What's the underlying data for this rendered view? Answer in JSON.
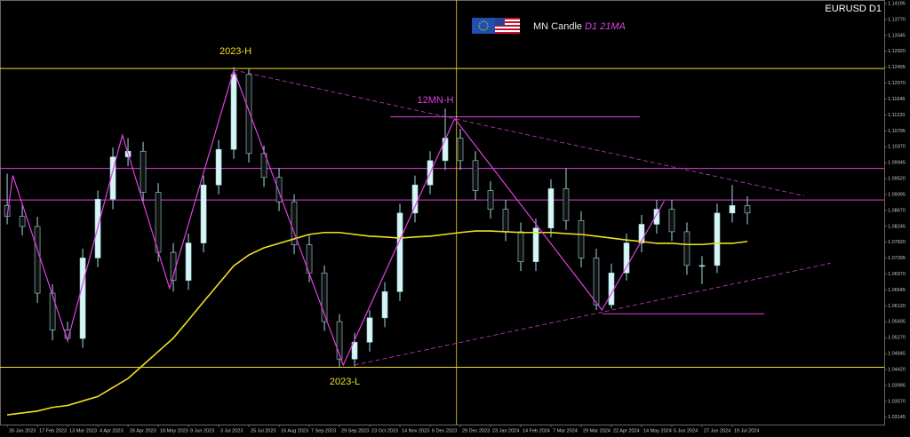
{
  "chart_data": {
    "type": "candlestick",
    "title": "EURUSD D1",
    "legend_text": "MN Candle",
    "legend_ma": "D1 21MA",
    "xlim": [
      -3.8,
      464.5
    ],
    "ylim": [
      1.0295,
      1.1429
    ],
    "yticks": [
      {
        "value": 1.14195,
        "label": "1.14195"
      },
      {
        "value": 1.1377,
        "label": "1.13770"
      },
      {
        "value": 1.13345,
        "label": "1.13345"
      },
      {
        "value": 1.1292,
        "label": "1.12920"
      },
      {
        "value": 1.12495,
        "label": "1.12495"
      },
      {
        "value": 1.1207,
        "label": "1.12070"
      },
      {
        "value": 1.11645,
        "label": "1.11645"
      },
      {
        "value": 1.1122,
        "label": "1.11220"
      },
      {
        "value": 1.10795,
        "label": "1.10795"
      },
      {
        "value": 1.1037,
        "label": "1.10370"
      },
      {
        "value": 1.09945,
        "label": "1.09945"
      },
      {
        "value": 1.0952,
        "label": "1.09520"
      },
      {
        "value": 1.09095,
        "label": "1.09095"
      },
      {
        "value": 1.0867,
        "label": "1.08670"
      },
      {
        "value": 1.08245,
        "label": "1.08245"
      },
      {
        "value": 1.0782,
        "label": "1.07820"
      },
      {
        "value": 1.07395,
        "label": "1.07395"
      },
      {
        "value": 1.0697,
        "label": "1.06970"
      },
      {
        "value": 1.06545,
        "label": "1.06545"
      },
      {
        "value": 1.0612,
        "label": "1.06120"
      },
      {
        "value": 1.05695,
        "label": "1.05695"
      },
      {
        "value": 1.0527,
        "label": "1.05270"
      },
      {
        "value": 1.04845,
        "label": "1.04845"
      },
      {
        "value": 1.0442,
        "label": "1.04420"
      },
      {
        "value": 1.03995,
        "label": "1.03995"
      },
      {
        "value": 1.0357,
        "label": "1.03570"
      },
      {
        "value": 1.03145,
        "label": "1.03145"
      }
    ],
    "xticks": [
      {
        "value": 0,
        "label": "26 Jan 2023"
      },
      {
        "value": 16,
        "label": "17 Feb 2023"
      },
      {
        "value": 32,
        "label": "13 Mar 2023"
      },
      {
        "value": 48,
        "label": "4 Apr 2023"
      },
      {
        "value": 64,
        "label": "26 Apr 2023"
      },
      {
        "value": 80,
        "label": "18 May 2023"
      },
      {
        "value": 96,
        "label": "9 Jun 2023"
      },
      {
        "value": 112,
        "label": "3 Jul 2023"
      },
      {
        "value": 128,
        "label": "25 Jul 2023"
      },
      {
        "value": 144,
        "label": "16 Aug 2023"
      },
      {
        "value": 160,
        "label": "7 Sep 2023"
      },
      {
        "value": 176,
        "label": "29 Sep 2023"
      },
      {
        "value": 192,
        "label": "23 Oct 2023"
      },
      {
        "value": 208,
        "label": "14 Nov 2023"
      },
      {
        "value": 224,
        "label": "6 Dec 2023"
      },
      {
        "value": 240,
        "label": "29 Dec 2023"
      },
      {
        "value": 256,
        "label": "23 Jan 2024"
      },
      {
        "value": 272,
        "label": "14 Feb 2024"
      },
      {
        "value": 288,
        "label": "7 Mar 2024"
      },
      {
        "value": 304,
        "label": "29 Mar 2024"
      },
      {
        "value": 320,
        "label": "22 Apr 2024"
      },
      {
        "value": 336,
        "label": "14 May 2024"
      },
      {
        "value": 352,
        "label": "5 Jun 2024"
      },
      {
        "value": 368,
        "label": "27 Jun 2024"
      },
      {
        "value": 384,
        "label": "19 Jul 2024"
      }
    ],
    "x": [
      0,
      8,
      16,
      24,
      32,
      40,
      48,
      56,
      64,
      72,
      80,
      88,
      96,
      104,
      112,
      120,
      128,
      136,
      144,
      152,
      160,
      168,
      176,
      184,
      192,
      200,
      208,
      216,
      224,
      232,
      240,
      248,
      256,
      264,
      272,
      280,
      288,
      296,
      304,
      312,
      320,
      328,
      336,
      344,
      352,
      360,
      368,
      376,
      384,
      392
    ],
    "open": [
      1.088,
      1.0851,
      1.0824,
      1.0646,
      1.0548,
      1.0525,
      1.074,
      1.0897,
      1.101,
      1.1025,
      1.0915,
      1.0755,
      1.068,
      1.078,
      1.0935,
      1.103,
      1.123,
      1.1019,
      1.0955,
      1.089,
      1.0775,
      1.07,
      1.057,
      1.047,
      1.0515,
      1.058,
      1.065,
      1.086,
      1.0935,
      1.1,
      1.106,
      1.1,
      1.092,
      1.087,
      1.081,
      1.073,
      1.082,
      1.0925,
      1.084,
      1.074,
      1.0615,
      1.07,
      1.078,
      1.083,
      1.087,
      1.081,
      1.072,
      1.072,
      1.086,
      1.088
    ],
    "high": [
      1.0965,
      1.088,
      1.085,
      1.067,
      1.057,
      1.0765,
      1.092,
      1.1035,
      1.106,
      1.105,
      1.094,
      1.078,
      1.0805,
      1.096,
      1.1055,
      1.125,
      1.1245,
      1.104,
      1.098,
      1.091,
      1.08,
      1.072,
      1.059,
      1.054,
      1.06,
      1.0675,
      1.0885,
      1.096,
      1.1025,
      1.1139,
      1.1085,
      1.1025,
      1.0945,
      1.0895,
      1.0835,
      1.0845,
      1.095,
      1.098,
      1.0865,
      1.0765,
      1.0725,
      1.0805,
      1.0855,
      1.0895,
      1.0895,
      1.0835,
      1.0745,
      1.0885,
      1.0935,
      1.0905
    ],
    "low": [
      1.083,
      1.08,
      1.062,
      1.052,
      1.0515,
      1.05,
      1.0715,
      1.087,
      1.0985,
      1.089,
      1.073,
      1.065,
      1.0655,
      1.0755,
      1.091,
      1.1005,
      1.0995,
      1.093,
      1.0865,
      1.075,
      1.0675,
      1.0545,
      1.0448,
      1.045,
      1.049,
      1.0555,
      1.0625,
      1.0835,
      1.091,
      1.0975,
      1.0975,
      1.0895,
      1.0845,
      1.0785,
      1.0705,
      1.0705,
      1.0795,
      1.0815,
      1.0715,
      1.0601,
      1.0605,
      1.068,
      1.0755,
      1.0805,
      1.0785,
      1.0695,
      1.067,
      1.07,
      1.0835,
      1.083
    ],
    "close": [
      1.0851,
      1.0824,
      1.0646,
      1.0548,
      1.0525,
      1.074,
      1.0897,
      1.101,
      1.1025,
      1.0915,
      1.0755,
      1.068,
      1.078,
      1.0935,
      1.103,
      1.123,
      1.1019,
      1.0955,
      1.089,
      1.0775,
      1.07,
      1.057,
      1.047,
      1.0515,
      1.058,
      1.065,
      1.086,
      1.0935,
      1.1,
      1.106,
      1.1,
      1.092,
      1.087,
      1.081,
      1.073,
      1.082,
      1.0925,
      1.084,
      1.074,
      1.0615,
      1.07,
      1.078,
      1.083,
      1.087,
      1.081,
      1.072,
      1.072,
      1.086,
      1.088,
      1.086
    ],
    "bull_color": "#d8f4f6",
    "bear_color": "#111111",
    "wick_color": "#9fdbe2",
    "lines": [
      {
        "color": "#f0e020",
        "width": 1.6,
        "dash": false,
        "x": [
          0,
          8,
          16,
          24,
          32,
          40,
          48,
          56,
          64,
          72,
          80,
          88,
          96,
          104,
          112,
          120,
          128,
          136,
          144,
          152,
          160,
          168,
          176,
          184,
          192,
          200,
          208,
          216,
          224,
          232,
          240,
          248,
          256,
          264,
          272,
          280,
          288,
          296,
          304,
          312,
          320,
          328,
          336,
          344,
          352,
          360,
          368,
          376,
          384,
          392
        ],
        "values": [
          1.0321,
          1.0326,
          1.0331,
          1.0341,
          1.0346,
          1.0358,
          1.037,
          1.0394,
          1.0418,
          1.0454,
          1.049,
          1.0526,
          1.0574,
          1.0623,
          1.0671,
          1.0719,
          1.0748,
          1.0767,
          1.0779,
          1.0791,
          1.0803,
          1.0808,
          1.0808,
          1.0803,
          1.0798,
          1.0796,
          1.0793,
          1.0796,
          1.0798,
          1.0803,
          1.0808,
          1.0812,
          1.0812,
          1.081,
          1.0808,
          1.0808,
          1.0808,
          1.0805,
          1.0803,
          1.0798,
          1.0793,
          1.0788,
          1.0784,
          1.0779,
          1.0779,
          1.0776,
          1.0776,
          1.0779,
          1.0779,
          1.0784
        ]
      },
      {
        "color": "#e040e0",
        "width": 1.2,
        "dash": false,
        "x": [
          0,
          3,
          32,
          61,
          86,
          120,
          178,
          237,
          315,
          348
        ],
        "values": [
          1.0851,
          1.096,
          1.0519,
          1.1068,
          1.0659,
          1.1242,
          1.0454,
          1.1112,
          1.0601,
          1.0892
        ]
      },
      {
        "color": "#c040c0",
        "width": 0.8,
        "dash": true,
        "x": [
          120,
          422
        ],
        "values": [
          1.1242,
          1.0906
        ]
      },
      {
        "color": "#c040c0",
        "width": 0.8,
        "dash": true,
        "x": [
          184,
          436
        ],
        "values": [
          1.0454,
          1.0726
        ]
      }
    ],
    "levels": [
      {
        "value": 1.1246,
        "color": "#f0e020",
        "label": "2023-H"
      },
      {
        "value": 1.0448,
        "color": "#f0e020",
        "label": "2023-L"
      },
      {
        "value": 1.1117,
        "color": "#e040e0",
        "label": "12MN-H",
        "x": [
          203,
          335
        ]
      },
      {
        "value": 1.0979,
        "color": "#e040e0"
      },
      {
        "value": 1.0895,
        "color": "#e040e0"
      },
      {
        "value": 1.0591,
        "color": "#e040e0",
        "x": [
          315,
          401
        ]
      }
    ],
    "vline": 238,
    "vline_color": "#f0e020"
  }
}
